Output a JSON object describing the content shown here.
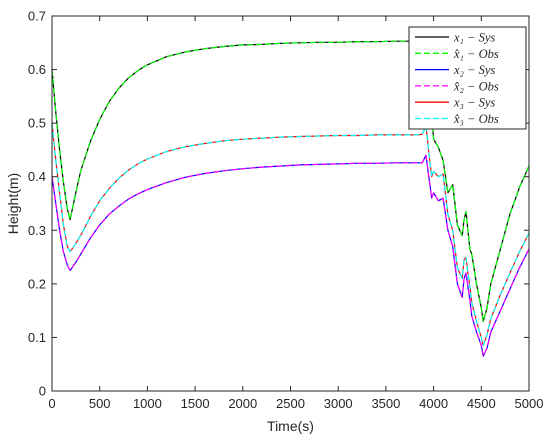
{
  "chart_data": {
    "type": "line",
    "title": "",
    "xlabel": "Time(s)",
    "ylabel": "Height(m)",
    "xlim": [
      0,
      5000
    ],
    "ylim": [
      0,
      0.7
    ],
    "xticks": [
      0,
      500,
      1000,
      1500,
      2000,
      2500,
      3000,
      3500,
      4000,
      4500,
      5000
    ],
    "yticks": [
      0,
      0.1,
      0.2,
      0.3,
      0.4,
      0.5,
      0.6,
      0.7
    ],
    "grid": false,
    "legend_position": "top-right",
    "series": [
      {
        "name": "x₁ − Sys",
        "color": "#000000",
        "style": "solid",
        "x": [
          0,
          40,
          80,
          120,
          160,
          190,
          250,
          300,
          400,
          500,
          600,
          700,
          800,
          900,
          1000,
          1200,
          1400,
          1600,
          1800,
          2000,
          2200,
          2400,
          2600,
          2800,
          3000,
          3200,
          3400,
          3600,
          3800,
          3880,
          3900,
          3920,
          3950,
          3980,
          4000,
          4050,
          4100,
          4150,
          4200,
          4250,
          4300,
          4320,
          4340,
          4360,
          4380,
          4400,
          4450,
          4500,
          4520,
          4560,
          4600,
          4700,
          4800,
          4900,
          5000
        ],
        "values": [
          0.6,
          0.52,
          0.45,
          0.39,
          0.34,
          0.32,
          0.37,
          0.41,
          0.465,
          0.507,
          0.54,
          0.565,
          0.584,
          0.598,
          0.609,
          0.624,
          0.633,
          0.639,
          0.643,
          0.646,
          0.647,
          0.649,
          0.65,
          0.651,
          0.651,
          0.652,
          0.652,
          0.653,
          0.653,
          0.653,
          0.645,
          0.63,
          0.59,
          0.515,
          0.47,
          0.455,
          0.43,
          0.37,
          0.385,
          0.31,
          0.29,
          0.32,
          0.335,
          0.3,
          0.265,
          0.255,
          0.2,
          0.155,
          0.13,
          0.155,
          0.2,
          0.265,
          0.33,
          0.38,
          0.42
        ]
      },
      {
        "name": "x̂₁ − Obs",
        "color": "#00ff00",
        "style": "dashed",
        "x": [
          0,
          40,
          80,
          120,
          160,
          190,
          250,
          300,
          400,
          500,
          600,
          700,
          800,
          900,
          1000,
          1200,
          1400,
          1600,
          1800,
          2000,
          2200,
          2400,
          2600,
          2800,
          3000,
          3200,
          3400,
          3600,
          3800,
          3880,
          3900,
          3920,
          3950,
          3980,
          4000,
          4050,
          4100,
          4150,
          4200,
          4250,
          4300,
          4320,
          4340,
          4360,
          4380,
          4400,
          4450,
          4500,
          4520,
          4560,
          4600,
          4700,
          4800,
          4900,
          5000
        ],
        "values": [
          0.6,
          0.52,
          0.45,
          0.39,
          0.34,
          0.32,
          0.37,
          0.41,
          0.465,
          0.507,
          0.54,
          0.565,
          0.584,
          0.598,
          0.609,
          0.624,
          0.633,
          0.639,
          0.643,
          0.646,
          0.647,
          0.649,
          0.65,
          0.651,
          0.651,
          0.652,
          0.652,
          0.653,
          0.653,
          0.653,
          0.645,
          0.63,
          0.59,
          0.515,
          0.47,
          0.455,
          0.43,
          0.37,
          0.385,
          0.31,
          0.29,
          0.32,
          0.335,
          0.3,
          0.265,
          0.255,
          0.2,
          0.155,
          0.13,
          0.155,
          0.2,
          0.265,
          0.33,
          0.38,
          0.42
        ]
      },
      {
        "name": "x₂ − Sys",
        "color": "#0000ff",
        "style": "solid",
        "x": [
          0,
          40,
          80,
          120,
          160,
          190,
          250,
          300,
          400,
          500,
          600,
          700,
          800,
          900,
          1000,
          1200,
          1400,
          1600,
          1800,
          2000,
          2200,
          2400,
          2600,
          2800,
          3000,
          3200,
          3400,
          3600,
          3800,
          3880,
          3920,
          3950,
          3980,
          4000,
          4050,
          4100,
          4150,
          4200,
          4250,
          4300,
          4320,
          4340,
          4360,
          4380,
          4400,
          4450,
          4500,
          4520,
          4560,
          4600,
          4700,
          4800,
          4900,
          5000
        ],
        "values": [
          0.4,
          0.35,
          0.3,
          0.26,
          0.235,
          0.225,
          0.24,
          0.255,
          0.285,
          0.31,
          0.33,
          0.345,
          0.358,
          0.368,
          0.376,
          0.389,
          0.399,
          0.406,
          0.411,
          0.415,
          0.418,
          0.42,
          0.422,
          0.423,
          0.424,
          0.425,
          0.425,
          0.426,
          0.426,
          0.426,
          0.44,
          0.4,
          0.36,
          0.37,
          0.355,
          0.36,
          0.3,
          0.27,
          0.2,
          0.175,
          0.21,
          0.22,
          0.195,
          0.17,
          0.14,
          0.11,
          0.085,
          0.065,
          0.08,
          0.11,
          0.15,
          0.19,
          0.23,
          0.265
        ]
      },
      {
        "name": "x̂₂ − Obs",
        "color": "#ff00ff",
        "style": "dashed",
        "x": [
          0,
          40,
          80,
          120,
          160,
          190,
          250,
          300,
          400,
          500,
          600,
          700,
          800,
          900,
          1000,
          1200,
          1400,
          1600,
          1800,
          2000,
          2200,
          2400,
          2600,
          2800,
          3000,
          3200,
          3400,
          3600,
          3800,
          3880,
          3920,
          3950,
          3980,
          4000,
          4050,
          4100,
          4150,
          4200,
          4250,
          4300,
          4320,
          4340,
          4360,
          4380,
          4400,
          4450,
          4500,
          4520,
          4560,
          4600,
          4700,
          4800,
          4900,
          5000
        ],
        "values": [
          0.4,
          0.35,
          0.3,
          0.26,
          0.235,
          0.225,
          0.24,
          0.255,
          0.285,
          0.31,
          0.33,
          0.345,
          0.358,
          0.368,
          0.376,
          0.389,
          0.399,
          0.406,
          0.411,
          0.415,
          0.418,
          0.42,
          0.422,
          0.423,
          0.424,
          0.425,
          0.425,
          0.426,
          0.426,
          0.426,
          0.44,
          0.4,
          0.36,
          0.37,
          0.355,
          0.36,
          0.3,
          0.27,
          0.2,
          0.175,
          0.21,
          0.22,
          0.195,
          0.17,
          0.14,
          0.11,
          0.085,
          0.065,
          0.08,
          0.11,
          0.15,
          0.19,
          0.23,
          0.265
        ]
      },
      {
        "name": "x₃ − Sys",
        "color": "#ff0000",
        "style": "solid",
        "x": [
          0,
          40,
          80,
          120,
          160,
          190,
          250,
          300,
          400,
          500,
          600,
          700,
          800,
          900,
          1000,
          1200,
          1400,
          1600,
          1800,
          2000,
          2200,
          2400,
          2600,
          2800,
          3000,
          3200,
          3400,
          3600,
          3800,
          3880,
          3920,
          3950,
          3980,
          4000,
          4050,
          4100,
          4150,
          4200,
          4250,
          4300,
          4320,
          4340,
          4360,
          4380,
          4400,
          4450,
          4500,
          4520,
          4560,
          4600,
          4700,
          4800,
          4900,
          5000
        ],
        "values": [
          0.5,
          0.43,
          0.37,
          0.31,
          0.27,
          0.26,
          0.275,
          0.29,
          0.325,
          0.355,
          0.378,
          0.397,
          0.412,
          0.424,
          0.433,
          0.447,
          0.456,
          0.462,
          0.467,
          0.47,
          0.472,
          0.474,
          0.475,
          0.476,
          0.477,
          0.477,
          0.478,
          0.478,
          0.478,
          0.479,
          0.495,
          0.445,
          0.4,
          0.41,
          0.4,
          0.405,
          0.33,
          0.3,
          0.23,
          0.21,
          0.245,
          0.25,
          0.22,
          0.195,
          0.165,
          0.13,
          0.1,
          0.085,
          0.105,
          0.135,
          0.18,
          0.22,
          0.26,
          0.295
        ]
      },
      {
        "name": "x̂₃ − Obs",
        "color": "#00ffff",
        "style": "dashed",
        "x": [
          0,
          40,
          80,
          120,
          160,
          190,
          250,
          300,
          400,
          500,
          600,
          700,
          800,
          900,
          1000,
          1200,
          1400,
          1600,
          1800,
          2000,
          2200,
          2400,
          2600,
          2800,
          3000,
          3200,
          3400,
          3600,
          3800,
          3880,
          3920,
          3950,
          3980,
          4000,
          4050,
          4100,
          4150,
          4200,
          4250,
          4300,
          4320,
          4340,
          4360,
          4380,
          4400,
          4450,
          4500,
          4520,
          4560,
          4600,
          4700,
          4800,
          4900,
          5000
        ],
        "values": [
          0.5,
          0.43,
          0.37,
          0.31,
          0.27,
          0.26,
          0.275,
          0.29,
          0.325,
          0.355,
          0.378,
          0.397,
          0.412,
          0.424,
          0.433,
          0.447,
          0.456,
          0.462,
          0.467,
          0.47,
          0.472,
          0.474,
          0.475,
          0.476,
          0.477,
          0.477,
          0.478,
          0.478,
          0.478,
          0.479,
          0.495,
          0.445,
          0.4,
          0.41,
          0.4,
          0.405,
          0.33,
          0.3,
          0.23,
          0.21,
          0.245,
          0.25,
          0.22,
          0.195,
          0.165,
          0.13,
          0.1,
          0.085,
          0.105,
          0.135,
          0.18,
          0.22,
          0.26,
          0.295
        ]
      }
    ]
  }
}
